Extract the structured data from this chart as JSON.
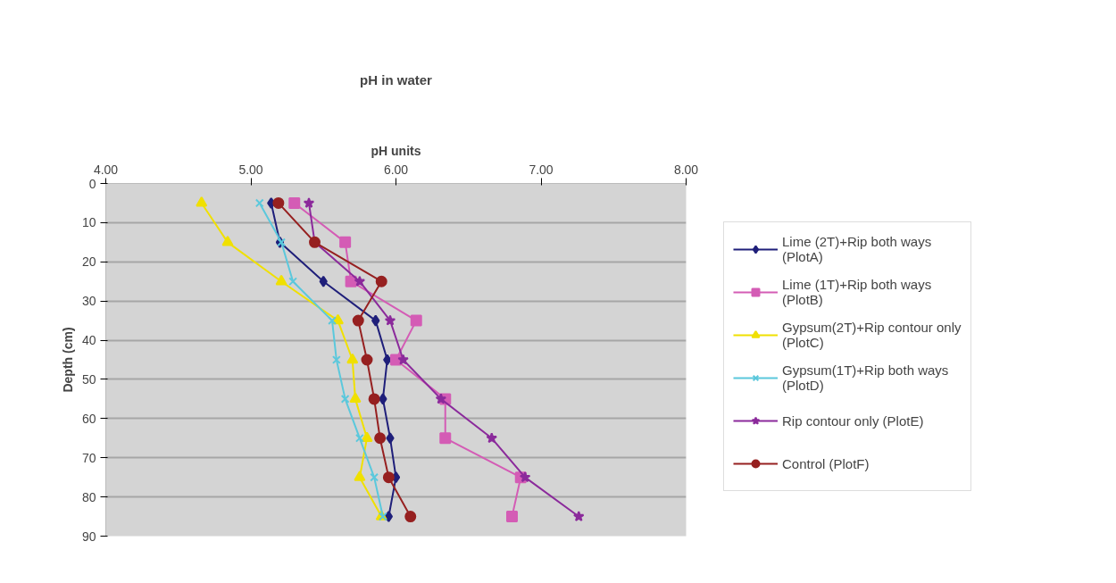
{
  "chart_data": {
    "type": "line",
    "title": "pH in water",
    "xlabel": "pH units",
    "ylabel": "Depth (cm)",
    "xlim": [
      4,
      8
    ],
    "xticks": [
      {
        "value": 4,
        "label": "4.00"
      },
      {
        "value": 5,
        "label": "5.00"
      },
      {
        "value": 6,
        "label": "6.00"
      },
      {
        "value": 7,
        "label": "7.00"
      },
      {
        "value": 8,
        "label": "8.00"
      }
    ],
    "ylim": [
      90,
      0
    ],
    "yticks": [
      0,
      10,
      20,
      30,
      40,
      50,
      60,
      70,
      80,
      90
    ],
    "grid": "y",
    "legend": "right",
    "series": [
      {
        "name": "Lime (2T)+Rip both ways (PlotA)",
        "color": "#1f1f7a",
        "marker": "diamond",
        "x": [
          5.14,
          5.2,
          5.5,
          5.86,
          5.94,
          5.91,
          5.96,
          6.0,
          5.95
        ],
        "values": [
          5,
          15,
          25,
          35,
          45,
          55,
          65,
          75,
          85
        ]
      },
      {
        "name": "Lime (1T)+Rip both ways (PlotB)",
        "color": "#d45cb5",
        "marker": "square",
        "x": [
          5.3,
          5.65,
          5.69,
          6.14,
          6.0,
          6.34,
          6.34,
          6.86,
          6.8
        ],
        "values": [
          5,
          15,
          25,
          35,
          45,
          55,
          65,
          75,
          85
        ]
      },
      {
        "name": "Gypsum(2T)+Rip contour only (PlotC)",
        "color": "#f0e000",
        "marker": "triangle",
        "x": [
          4.66,
          4.84,
          5.21,
          5.6,
          5.7,
          5.72,
          5.8,
          5.75,
          5.9
        ],
        "values": [
          5,
          15,
          25,
          35,
          45,
          55,
          65,
          75,
          85
        ]
      },
      {
        "name": "Gypsum(1T)+Rip both ways (PlotD)",
        "color": "#5bc8dc",
        "marker": "cross",
        "x": [
          5.06,
          5.21,
          5.29,
          5.56,
          5.59,
          5.65,
          5.75,
          5.85,
          5.91
        ],
        "values": [
          5,
          15,
          25,
          35,
          45,
          55,
          65,
          75,
          85
        ]
      },
      {
        "name": "Rip contour only (PlotE)",
        "color": "#8b2a9b",
        "marker": "star",
        "x": [
          5.4,
          5.44,
          5.75,
          5.96,
          6.05,
          6.31,
          6.66,
          6.89,
          7.26
        ],
        "values": [
          5,
          15,
          25,
          35,
          45,
          55,
          65,
          75,
          85
        ]
      },
      {
        "name": "Control (PlotF)",
        "color": "#962020",
        "marker": "circle",
        "x": [
          5.19,
          5.44,
          5.9,
          5.74,
          5.8,
          5.85,
          5.89,
          5.95,
          6.1
        ],
        "values": [
          5,
          15,
          25,
          35,
          45,
          55,
          65,
          75,
          85
        ]
      }
    ]
  }
}
